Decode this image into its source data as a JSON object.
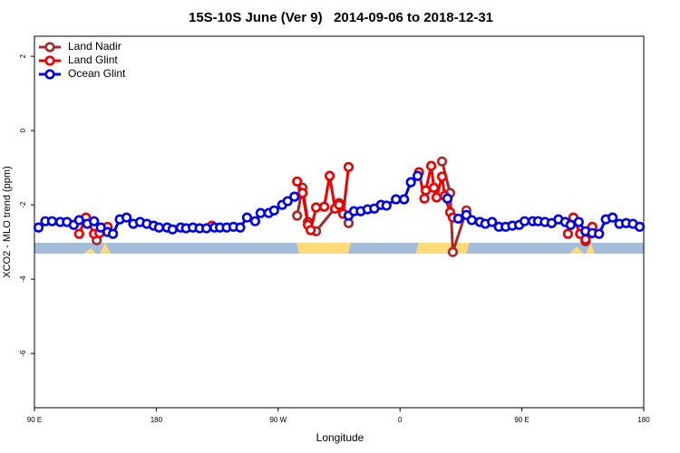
{
  "chart_data": {
    "type": "line",
    "title": "15S-10S June (Ver 9)   2014-09-06 to 2018-12-31",
    "xlabel": "Longitude",
    "ylabel": "XCO2 - MLO trend (ppm)",
    "xlim": [
      90,
      540
    ],
    "ylim": [
      -7.46,
      2.54
    ],
    "xticks": [
      {
        "value": 90,
        "label": "90 E"
      },
      {
        "value": 180,
        "label": "180"
      },
      {
        "value": 270,
        "label": "90 W"
      },
      {
        "value": 360,
        "label": "0"
      },
      {
        "value": 450,
        "label": "90 E"
      },
      {
        "value": 540,
        "label": "180"
      }
    ],
    "yticks": [
      -6,
      -4,
      -2,
      0,
      2
    ],
    "legend": "top-left",
    "series": [
      {
        "name": "Land Nadir",
        "color": "#a52a2a",
        "x": [
          136,
          140,
          141,
          284,
          288,
          292,
          298,
          315,
          322,
          323,
          391,
          397,
          399,
          409,
          410,
          497,
          501
        ],
        "values": [
          -2.95,
          -2.71,
          null,
          -2.29,
          -1.54,
          -2.46,
          -2.71,
          -1.95,
          -2.49,
          null,
          -0.83,
          -1.68,
          -3.27,
          -2.15,
          null,
          -2.98,
          -2.76
        ]
      },
      {
        "name": "Land Glint",
        "color": "#ee0000",
        "x": [
          123,
          128,
          134,
          138,
          144,
          145,
          221,
          222,
          284,
          288,
          292,
          294,
          298,
          304,
          308,
          312,
          315,
          318,
          322,
          323,
          374,
          378,
          379,
          383,
          385,
          387,
          391,
          393,
          397,
          399,
          400,
          484,
          488,
          493,
          497,
          502
        ],
        "values": [
          -2.78,
          -2.34,
          -2.78,
          -2.76,
          -2.59,
          null,
          -2.56,
          null,
          -1.37,
          -1.68,
          -2.54,
          -2.68,
          -2.07,
          -2.05,
          -1.22,
          -2.1,
          -2.0,
          -2.24,
          -0.98,
          null,
          -1.12,
          -1.83,
          -1.61,
          -0.95,
          -1.54,
          -1.8,
          -1.24,
          -1.76,
          -2.2,
          -2.34,
          null,
          -2.78,
          -2.34,
          -2.78,
          -2.93,
          -2.59
        ]
      },
      {
        "name": "Ocean Glint",
        "color": "#0000ee",
        "x": [
          93,
          98,
          103,
          109,
          114,
          119,
          123,
          129,
          134,
          139,
          144,
          148,
          153,
          158,
          163,
          168,
          173,
          178,
          182,
          188,
          192,
          198,
          202,
          207,
          212,
          217,
          223,
          227,
          232,
          237,
          242,
          247,
          253,
          257,
          263,
          267,
          273,
          277,
          282,
          300,
          322,
          326,
          331,
          336,
          341,
          346,
          350,
          357,
          363,
          368,
          373,
          385,
          395,
          400,
          403,
          409,
          413,
          419,
          423,
          428,
          433,
          438,
          443,
          448,
          452,
          458,
          462,
          467,
          472,
          477,
          482,
          486,
          492,
          497,
          502,
          507,
          512,
          517,
          522,
          527,
          532,
          537
        ],
        "values": [
          -2.61,
          -2.44,
          -2.44,
          -2.46,
          -2.46,
          -2.54,
          -2.41,
          -2.51,
          -2.44,
          -2.61,
          -2.73,
          -2.78,
          -2.39,
          -2.34,
          -2.51,
          -2.46,
          -2.51,
          -2.56,
          -2.61,
          -2.61,
          -2.66,
          -2.61,
          -2.63,
          -2.61,
          -2.63,
          -2.63,
          -2.61,
          -2.61,
          -2.61,
          -2.59,
          -2.61,
          -2.34,
          -2.44,
          -2.22,
          -2.22,
          -2.15,
          -2.0,
          -1.9,
          -1.78,
          null,
          -2.29,
          -2.17,
          -2.17,
          -2.12,
          -2.1,
          -2.0,
          -2.02,
          -1.85,
          -1.85,
          -1.39,
          -1.22,
          null,
          -1.83,
          null,
          -2.37,
          -2.27,
          -2.41,
          -2.46,
          -2.51,
          -2.46,
          -2.59,
          -2.59,
          -2.56,
          -2.54,
          -2.44,
          -2.44,
          -2.44,
          -2.46,
          -2.49,
          -2.39,
          -2.46,
          -2.54,
          -2.46,
          -2.71,
          -2.76,
          -2.78,
          -2.39,
          -2.34,
          -2.51,
          -2.49,
          -2.51,
          -2.59
        ]
      }
    ]
  }
}
